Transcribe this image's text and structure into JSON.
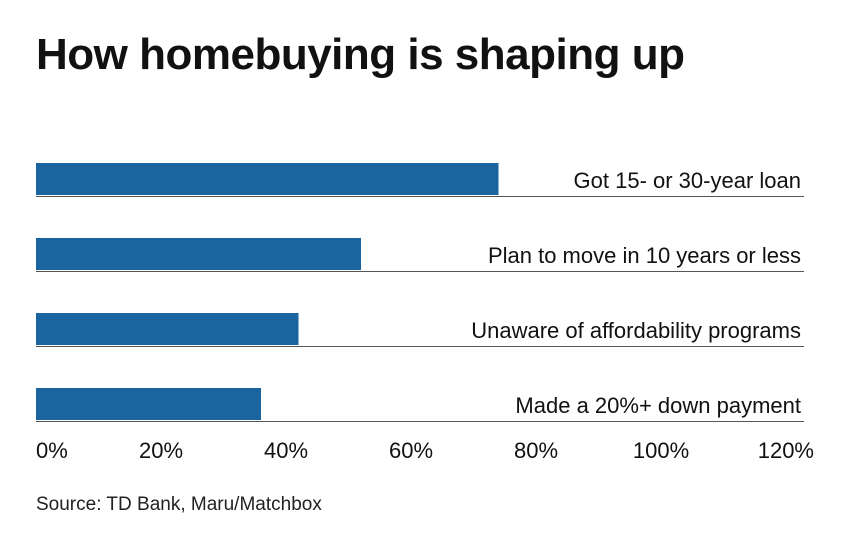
{
  "title": "How homebuying is shaping up",
  "source": "Source: TD Bank, Maru/Matchbox",
  "colors": {
    "bar": "#1a64a0",
    "rule": "#555555",
    "text": "#111111"
  },
  "chart_data": {
    "type": "bar",
    "orientation": "horizontal",
    "categories": [
      "Got 15- or 30-year loan",
      "Plan to move in 10 years or less",
      "Unaware of affordability programs",
      "Made a 20%+ down payment"
    ],
    "values": [
      74,
      52,
      42,
      36
    ],
    "unit": "%",
    "xlim": [
      0,
      120
    ],
    "x_ticks": [
      0,
      20,
      40,
      60,
      80,
      100,
      120
    ],
    "x_tick_labels": [
      "0%",
      "20%",
      "40%",
      "60%",
      "80%",
      "100%",
      "120%"
    ],
    "grid": false,
    "legend": "none"
  }
}
